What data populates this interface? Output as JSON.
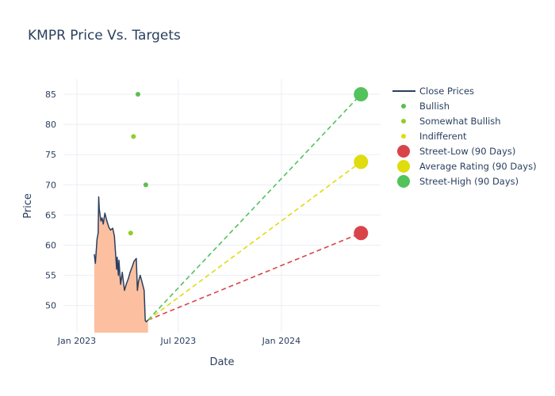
{
  "chart_data": {
    "type": "line",
    "title": "KMPR Price Vs. Targets",
    "xlabel": "Date",
    "ylabel": "Price",
    "x_ticks": [
      "Jan 2023",
      "Jul 2023",
      "Jan 2024"
    ],
    "y_ticks": [
      50,
      55,
      60,
      65,
      70,
      75,
      80,
      85
    ],
    "ylim": [
      45.5,
      87.5
    ],
    "xlim": [
      "2022-12-08",
      "2024-06-26"
    ],
    "grid": true,
    "legend_position": "top-right",
    "colors": {
      "close": "#2a3f5f",
      "fill": "#fcc0a0",
      "bullish": "#5bbf4d",
      "somewhat_bullish": "#8fce2a",
      "indifferent": "#e0dc0e",
      "street_low": "#d9444a",
      "average": "#e0dc0e",
      "street_high": "#52c25b",
      "grid": "#ebeef3"
    },
    "close_prices": [
      [
        "2023-02-01",
        58.5
      ],
      [
        "2023-02-03",
        57.0
      ],
      [
        "2023-02-06",
        61.0
      ],
      [
        "2023-02-08",
        62.0
      ],
      [
        "2023-02-09",
        68.0
      ],
      [
        "2023-02-10",
        66.0
      ],
      [
        "2023-02-13",
        64.0
      ],
      [
        "2023-02-15",
        64.5
      ],
      [
        "2023-02-17",
        63.5
      ],
      [
        "2023-02-20",
        65.3
      ],
      [
        "2023-02-23",
        64.2
      ],
      [
        "2023-02-27",
        63.0
      ],
      [
        "2023-03-02",
        62.5
      ],
      [
        "2023-03-06",
        62.8
      ],
      [
        "2023-03-09",
        61.5
      ],
      [
        "2023-03-13",
        56.0
      ],
      [
        "2023-03-14",
        58.0
      ],
      [
        "2023-03-16",
        55.0
      ],
      [
        "2023-03-17",
        57.5
      ],
      [
        "2023-03-20",
        53.5
      ],
      [
        "2023-03-23",
        55.5
      ],
      [
        "2023-03-27",
        52.5
      ],
      [
        "2023-03-30",
        53.5
      ],
      [
        "2023-04-03",
        54.5
      ],
      [
        "2023-04-06",
        55.5
      ],
      [
        "2023-04-10",
        56.5
      ],
      [
        "2023-04-13",
        57.3
      ],
      [
        "2023-04-17",
        57.8
      ],
      [
        "2023-04-19",
        52.5
      ],
      [
        "2023-04-21",
        54.0
      ],
      [
        "2023-04-24",
        55.0
      ],
      [
        "2023-04-27",
        54.0
      ],
      [
        "2023-05-01",
        52.5
      ],
      [
        "2023-05-03",
        47.5
      ],
      [
        "2023-05-05",
        47.3
      ],
      [
        "2023-05-08",
        47.6
      ]
    ],
    "analyst_ratings": [
      {
        "date": "2023-04-20",
        "price": 85,
        "rating": "Bullish"
      },
      {
        "date": "2023-04-12",
        "price": 78,
        "rating": "Somewhat Bullish"
      },
      {
        "date": "2023-05-04",
        "price": 70,
        "rating": "Bullish"
      },
      {
        "date": "2023-04-07",
        "price": 62,
        "rating": "Somewhat Bullish"
      }
    ],
    "targets": {
      "start": [
        "2023-05-08",
        47.6
      ],
      "end_date": "2024-05-22",
      "street_low": 62,
      "average": 73.8,
      "street_high": 85
    },
    "legend": [
      "Close Prices",
      "Bullish",
      "Somewhat Bullish",
      "Indifferent",
      "Street-Low (90 Days)",
      "Average Rating (90 Days)",
      "Street-High (90 Days)"
    ]
  }
}
